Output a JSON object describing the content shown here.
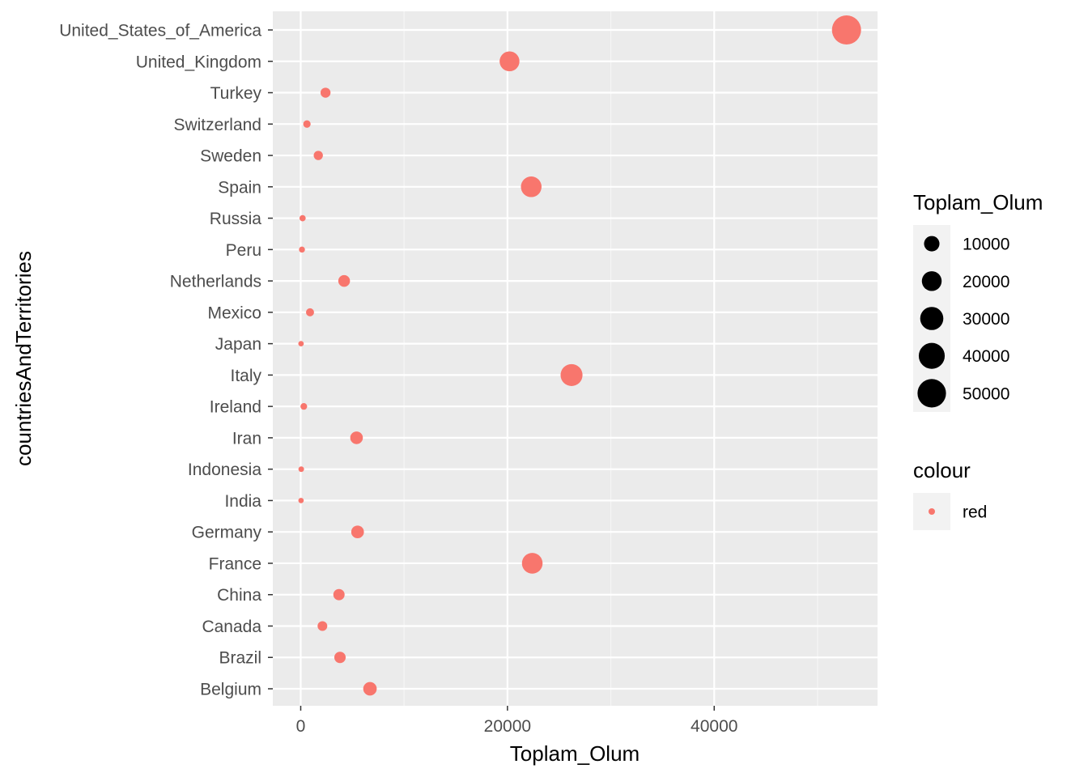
{
  "chart_data": {
    "type": "scatter",
    "xlabel": "Toplam_Olum",
    "ylabel": "countriesAndTerritories",
    "xlim": [
      -2700,
      55800
    ],
    "x_ticks": [
      0,
      20000,
      40000
    ],
    "grid": true,
    "legend_position": "right",
    "point_color": "#f8766d",
    "categories": [
      "United_States_of_America",
      "United_Kingdom",
      "Turkey",
      "Switzerland",
      "Sweden",
      "Spain",
      "Russia",
      "Peru",
      "Netherlands",
      "Mexico",
      "Japan",
      "Italy",
      "Ireland",
      "Iran",
      "Indonesia",
      "India",
      "Germany",
      "France",
      "China",
      "Canada",
      "Brazil",
      "Belgium"
    ],
    "values": [
      52800,
      20200,
      2400,
      600,
      1700,
      22300,
      180,
      120,
      4200,
      900,
      30,
      26200,
      300,
      5400,
      50,
      30,
      5500,
      22400,
      3700,
      2100,
      3800,
      6700
    ],
    "size_legend": {
      "title": "Toplam_Olum",
      "breaks": [
        10000,
        20000,
        30000,
        40000,
        50000
      ],
      "labels": [
        "10000",
        "20000",
        "30000",
        "40000",
        "50000"
      ]
    },
    "colour_legend": {
      "title": "colour",
      "labels": [
        "red"
      ]
    }
  }
}
